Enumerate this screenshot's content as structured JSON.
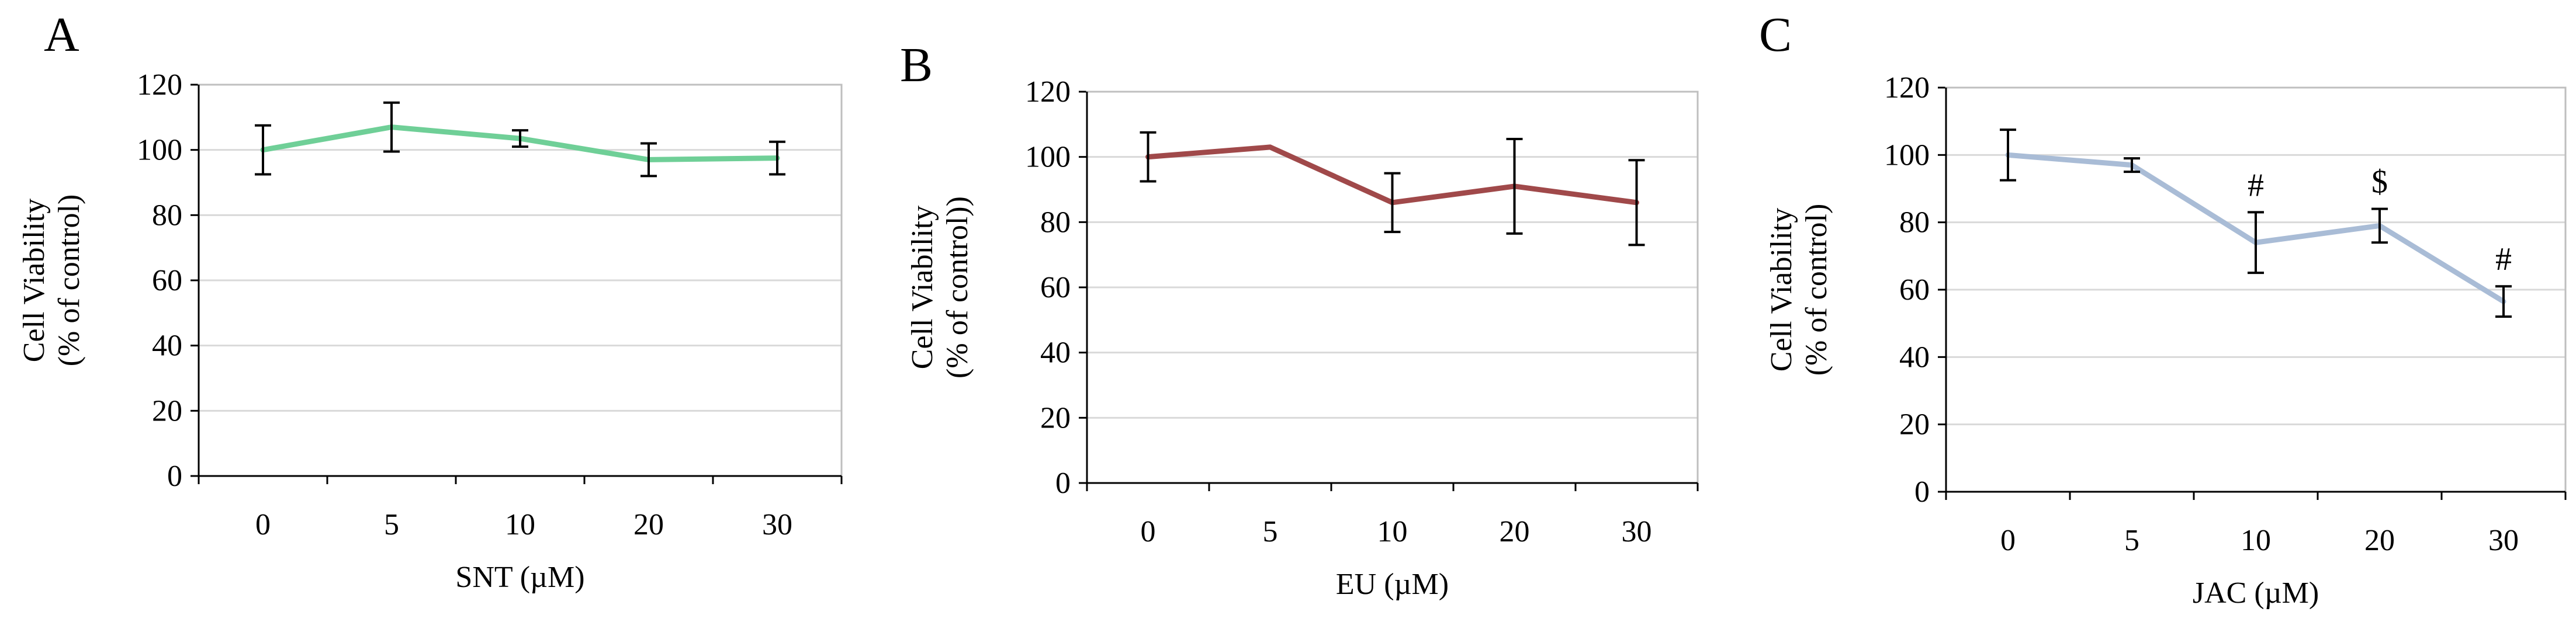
{
  "chart_data": [
    {
      "type": "line",
      "panel_label": "A",
      "categories": [
        "0",
        "5",
        "10",
        "20",
        "30"
      ],
      "series": [
        {
          "values": [
            100,
            107,
            103.5,
            97,
            97.5
          ],
          "errors": [
            7.5,
            7.5,
            2.5,
            5,
            5
          ]
        }
      ],
      "annotations": [
        "",
        "",
        "",
        "",
        ""
      ],
      "xlabel": "SNT (µM)",
      "ylabel": [
        "Cell Viability",
        "(% of control)"
      ],
      "ylim": [
        0,
        120
      ],
      "yticks": [
        0,
        20,
        40,
        60,
        80,
        100,
        120
      ],
      "grid": true,
      "line_color": "#6fcf97"
    },
    {
      "type": "line",
      "panel_label": "B",
      "categories": [
        "0",
        "5",
        "10",
        "20",
        "30"
      ],
      "series": [
        {
          "values": [
            100,
            103,
            86,
            91,
            86
          ],
          "errors": [
            7.5,
            0,
            9,
            14.5,
            13
          ]
        }
      ],
      "annotations": [
        "",
        "",
        "",
        "",
        ""
      ],
      "xlabel": "EU (µM)",
      "ylabel": [
        "Cell Viability",
        "(% of control))"
      ],
      "ylim": [
        0,
        120
      ],
      "yticks": [
        0,
        20,
        40,
        60,
        80,
        100,
        120
      ],
      "grid": true,
      "line_color": "#a0494a"
    },
    {
      "type": "line",
      "panel_label": "C",
      "categories": [
        "0",
        "5",
        "10",
        "20",
        "30"
      ],
      "series": [
        {
          "values": [
            100,
            97,
            74,
            79,
            56.5
          ],
          "errors": [
            7.5,
            2,
            9,
            5,
            4.5
          ]
        }
      ],
      "annotations": [
        "",
        "",
        "#",
        "$",
        "#"
      ],
      "xlabel": "JAC (µM)",
      "ylabel": [
        "Cell Viability",
        "(% of control)"
      ],
      "ylim": [
        0,
        120
      ],
      "yticks": [
        0,
        20,
        40,
        60,
        80,
        100,
        120
      ],
      "grid": true,
      "line_color": "#a9bcd6"
    }
  ]
}
